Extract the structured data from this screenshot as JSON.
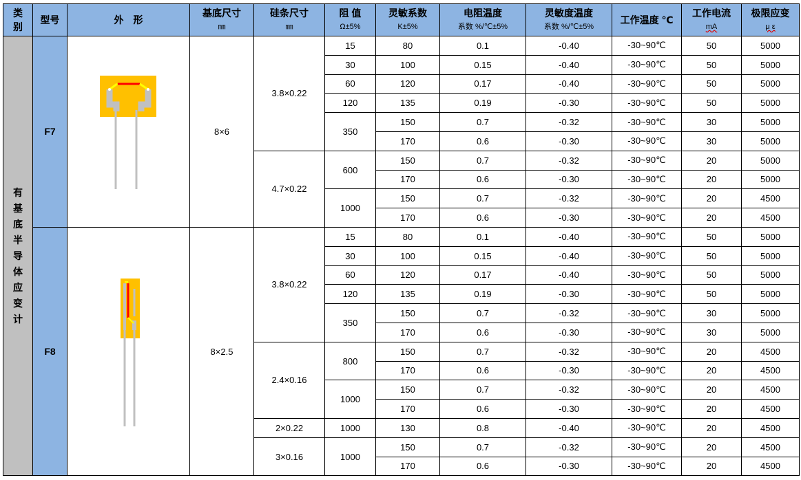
{
  "header": {
    "category": "类别",
    "model": "型号",
    "shape": "外　形",
    "base_size": "基底尺寸",
    "base_unit": "㎜",
    "si_size": "硅条尺寸",
    "si_unit": "㎜",
    "resistance": "阻 值",
    "resistance_unit": "Ω±5%",
    "gauge_factor": "灵敏系数",
    "gauge_unit": "K±5%",
    "rtc": "电阻温度",
    "rtc_unit": "系数 %/℃±5%",
    "stc": "灵敏度温度",
    "stc_unit": "系数 %/℃±5%",
    "work_temp": "工作温度 ℃",
    "current": "工作电流",
    "current_unit": "mA",
    "strain": "极限应变",
    "strain_unit": "μ ε"
  },
  "category": "有基底半导体应变计",
  "colors": {
    "header": "#8db4e2",
    "category": "#c0c0c0",
    "substrate": "#ffc000",
    "element": "#ff0000",
    "lead": "#c0c0c0"
  },
  "models": [
    {
      "model": "F7",
      "base": "8×6",
      "icon": "wide-strain-gauge",
      "si": [
        {
          "size": "3.8×0.22",
          "res": [
            {
              "r": "15",
              "rows": [
                [
                  "80",
                  "0.1",
                  "-0.40",
                  "-30~90℃",
                  "50",
                  "5000"
                ]
              ]
            },
            {
              "r": "30",
              "rows": [
                [
                  "100",
                  "0.15",
                  "-0.40",
                  "-30~90℃",
                  "50",
                  "5000"
                ]
              ]
            },
            {
              "r": "60",
              "rows": [
                [
                  "120",
                  "0.17",
                  "-0.40",
                  "-30~90℃",
                  "50",
                  "5000"
                ]
              ]
            },
            {
              "r": "120",
              "rows": [
                [
                  "135",
                  "0.19",
                  "-0.30",
                  "-30~90℃",
                  "50",
                  "5000"
                ]
              ]
            },
            {
              "r": "350",
              "rows": [
                [
                  "150",
                  "0.7",
                  "-0.32",
                  "-30~90℃",
                  "30",
                  "5000"
                ],
                [
                  "170",
                  "0.6",
                  "-0.30",
                  "-30~90℃",
                  "30",
                  "5000"
                ]
              ]
            }
          ]
        },
        {
          "size": "4.7×0.22",
          "res": [
            {
              "r": "600",
              "rows": [
                [
                  "150",
                  "0.7",
                  "-0.32",
                  "-30~90℃",
                  "20",
                  "5000"
                ],
                [
                  "170",
                  "0.6",
                  "-0.30",
                  "-30~90℃",
                  "20",
                  "5000"
                ]
              ]
            },
            {
              "r": "1000",
              "rows": [
                [
                  "150",
                  "0.7",
                  "-0.32",
                  "-30~90℃",
                  "20",
                  "4500"
                ],
                [
                  "170",
                  "0.6",
                  "-0.30",
                  "-30~90℃",
                  "20",
                  "4500"
                ]
              ]
            }
          ]
        }
      ]
    },
    {
      "model": "F8",
      "base": "8×2.5",
      "icon": "narrow-strain-gauge",
      "si": [
        {
          "size": "3.8×0.22",
          "res": [
            {
              "r": "15",
              "rows": [
                [
                  "80",
                  "0.1",
                  "-0.40",
                  "-30~90℃",
                  "50",
                  "5000"
                ]
              ]
            },
            {
              "r": "30",
              "rows": [
                [
                  "100",
                  "0.15",
                  "-0.40",
                  "-30~90℃",
                  "50",
                  "5000"
                ]
              ]
            },
            {
              "r": "60",
              "rows": [
                [
                  "120",
                  "0.17",
                  "-0.40",
                  "-30~90℃",
                  "50",
                  "5000"
                ]
              ]
            },
            {
              "r": "120",
              "rows": [
                [
                  "135",
                  "0.19",
                  "-0.30",
                  "-30~90℃",
                  "50",
                  "5000"
                ]
              ]
            },
            {
              "r": "350",
              "rows": [
                [
                  "150",
                  "0.7",
                  "-0.32",
                  "-30~90℃",
                  "30",
                  "5000"
                ],
                [
                  "170",
                  "0.6",
                  "-0.30",
                  "-30~90℃",
                  "30",
                  "5000"
                ]
              ]
            }
          ]
        },
        {
          "size": "2.4×0.16",
          "res": [
            {
              "r": "800",
              "rows": [
                [
                  "150",
                  "0.7",
                  "-0.32",
                  "-30~90℃",
                  "20",
                  "4500"
                ],
                [
                  "170",
                  "0.6",
                  "-0.30",
                  "-30~90℃",
                  "20",
                  "4500"
                ]
              ]
            },
            {
              "r": "1000",
              "rows": [
                [
                  "150",
                  "0.7",
                  "-0.32",
                  "-30~90℃",
                  "20",
                  "4500"
                ],
                [
                  "170",
                  "0.6",
                  "-0.30",
                  "-30~90℃",
                  "20",
                  "4500"
                ]
              ]
            }
          ]
        },
        {
          "size": "2×0.22",
          "res": [
            {
              "r": "1000",
              "rows": [
                [
                  "130",
                  "0.8",
                  "-0.40",
                  "-30~90℃",
                  "20",
                  "4500"
                ]
              ]
            }
          ]
        },
        {
          "size": "3×0.16",
          "res": [
            {
              "r": "1000",
              "rows": [
                [
                  "150",
                  "0.7",
                  "-0.32",
                  "-30~90℃",
                  "20",
                  "4500"
                ],
                [
                  "170",
                  "0.6",
                  "-0.30",
                  "-30~90℃",
                  "20",
                  "4500"
                ]
              ]
            }
          ]
        }
      ]
    }
  ]
}
